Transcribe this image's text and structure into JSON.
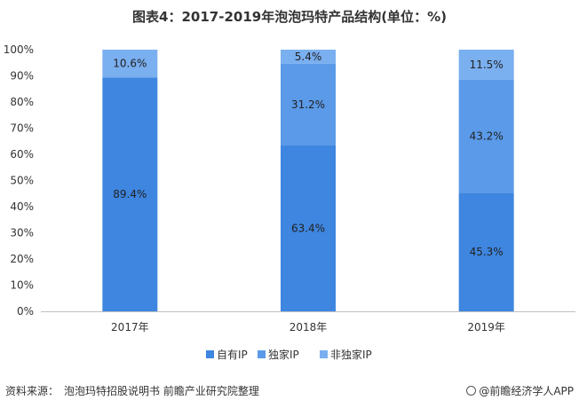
{
  "chart_data": {
    "type": "bar",
    "stacked": true,
    "title": "图表4：2017-2019年泡泡玛特产品结构(单位：%)",
    "categories": [
      "2017年",
      "2018年",
      "2019年"
    ],
    "series": [
      {
        "name": "自有IP",
        "values": [
          89.4,
          63.4,
          45.3
        ],
        "labels": [
          "89.4%",
          "63.4%",
          "45.3%"
        ],
        "color": "#3e86e0"
      },
      {
        "name": "独家IP",
        "values": [
          0,
          31.2,
          43.2
        ],
        "labels": [
          "",
          "31.2%",
          "43.2%"
        ],
        "color": "#5a9ae8"
      },
      {
        "name": "非独家IP",
        "values": [
          10.6,
          5.4,
          11.5
        ],
        "labels": [
          "10.6%",
          "5.4%",
          "11.5%"
        ],
        "color": "#7aaff0"
      }
    ],
    "ylim": [
      0,
      100
    ],
    "yticks": [
      "0%",
      "10%",
      "20%",
      "30%",
      "40%",
      "50%",
      "60%",
      "70%",
      "80%",
      "90%",
      "100%"
    ],
    "legend_position": "bottom",
    "grid": false
  },
  "footer": {
    "source_label": "资料来源：",
    "source_text": "泡泡玛特招股说明书 前瞻产业研究院整理",
    "brand": "@前瞻经济学人APP"
  }
}
